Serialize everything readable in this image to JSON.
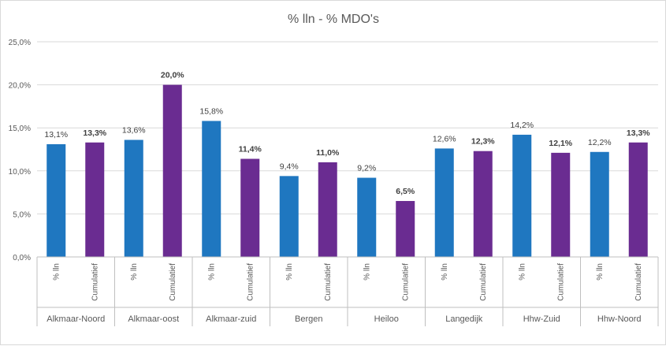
{
  "chart_data": {
    "type": "bar",
    "title": "% lln - % MDO's",
    "ylim": [
      0,
      25
    ],
    "yticks": [
      "0,0%",
      "5,0%",
      "10,0%",
      "15,0%",
      "20,0%",
      "25,0%"
    ],
    "ytick_values": [
      0,
      5,
      10,
      15,
      20,
      25
    ],
    "grid": true,
    "legend": "none",
    "groups": [
      {
        "label": "Alkmaar-Noord",
        "bars": [
          {
            "sub": "% lln",
            "value": 13.1,
            "label": "13,1%"
          },
          {
            "sub": "Cumulatief",
            "value": 13.3,
            "label": "13,3%"
          }
        ]
      },
      {
        "label": "Alkmaar-oost",
        "bars": [
          {
            "sub": "% lln",
            "value": 13.6,
            "label": "13,6%"
          },
          {
            "sub": "Cumulatief",
            "value": 20.0,
            "label": "20,0%"
          }
        ]
      },
      {
        "label": "Alkmaar-zuid",
        "bars": [
          {
            "sub": "% lln",
            "value": 15.8,
            "label": "15,8%"
          },
          {
            "sub": "Cumulatief",
            "value": 11.4,
            "label": "11,4%"
          }
        ]
      },
      {
        "label": "Bergen",
        "bars": [
          {
            "sub": "% lln",
            "value": 9.4,
            "label": "9,4%"
          },
          {
            "sub": "Cumulatief",
            "value": 11.0,
            "label": "11,0%"
          }
        ]
      },
      {
        "label": "Heiloo",
        "bars": [
          {
            "sub": "% lln",
            "value": 9.2,
            "label": "9,2%"
          },
          {
            "sub": "Cumulatief",
            "value": 6.5,
            "label": "6,5%"
          }
        ]
      },
      {
        "label": "Langedijk",
        "bars": [
          {
            "sub": "% lln",
            "value": 12.6,
            "label": "12,6%"
          },
          {
            "sub": "Cumulatief",
            "value": 12.3,
            "label": "12,3%"
          }
        ]
      },
      {
        "label": "Hhw-Zuid",
        "bars": [
          {
            "sub": "% lln",
            "value": 14.2,
            "label": "14,2%"
          },
          {
            "sub": "Cumulatief",
            "value": 12.1,
            "label": "12,1%"
          }
        ]
      },
      {
        "label": "Hhw-Noord",
        "bars": [
          {
            "sub": "% lln",
            "value": 12.2,
            "label": "12,2%"
          },
          {
            "sub": "Cumulatief",
            "value": 13.3,
            "label": "13,3%"
          }
        ]
      }
    ],
    "colors": {
      "% lln": "#1f77c0",
      "Cumulatief": "#6a2c91"
    },
    "colors_hex": {
      "lln": "#1f77c0",
      "cumulatief": "#6a2c91",
      "grid": "#d9d9d9",
      "axis": "#bfbfbf"
    }
  }
}
